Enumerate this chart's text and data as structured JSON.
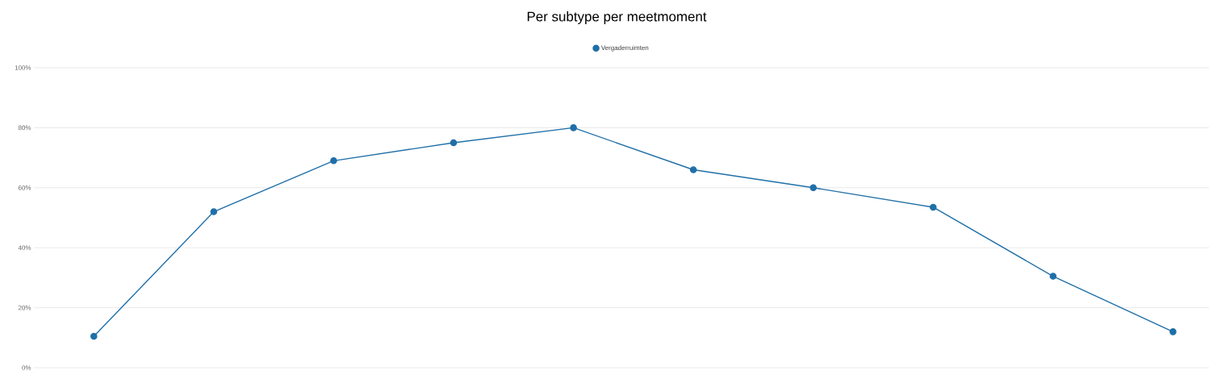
{
  "chart_data": {
    "type": "line",
    "title": "Per subtype per meetmoment",
    "categories": [
      null,
      null,
      null,
      null,
      null,
      null,
      null,
      null,
      null,
      null
    ],
    "series": [
      {
        "name": "Vergaderruimten",
        "color": "#1f6fa8",
        "values": [
          10.5,
          52,
          69,
          75,
          80,
          66,
          60,
          53.5,
          30.5,
          12
        ]
      }
    ],
    "ylim": [
      0,
      100
    ],
    "yticks": [
      {
        "value": 0,
        "label": "0%"
      },
      {
        "value": 20,
        "label": "20%"
      },
      {
        "value": 40,
        "label": "40%"
      },
      {
        "value": 60,
        "label": "60%"
      },
      {
        "value": 80,
        "label": "80%"
      },
      {
        "value": 100,
        "label": "100%"
      }
    ],
    "grid": "y",
    "legend": "top",
    "marker": "circle",
    "line_style": "solid"
  }
}
